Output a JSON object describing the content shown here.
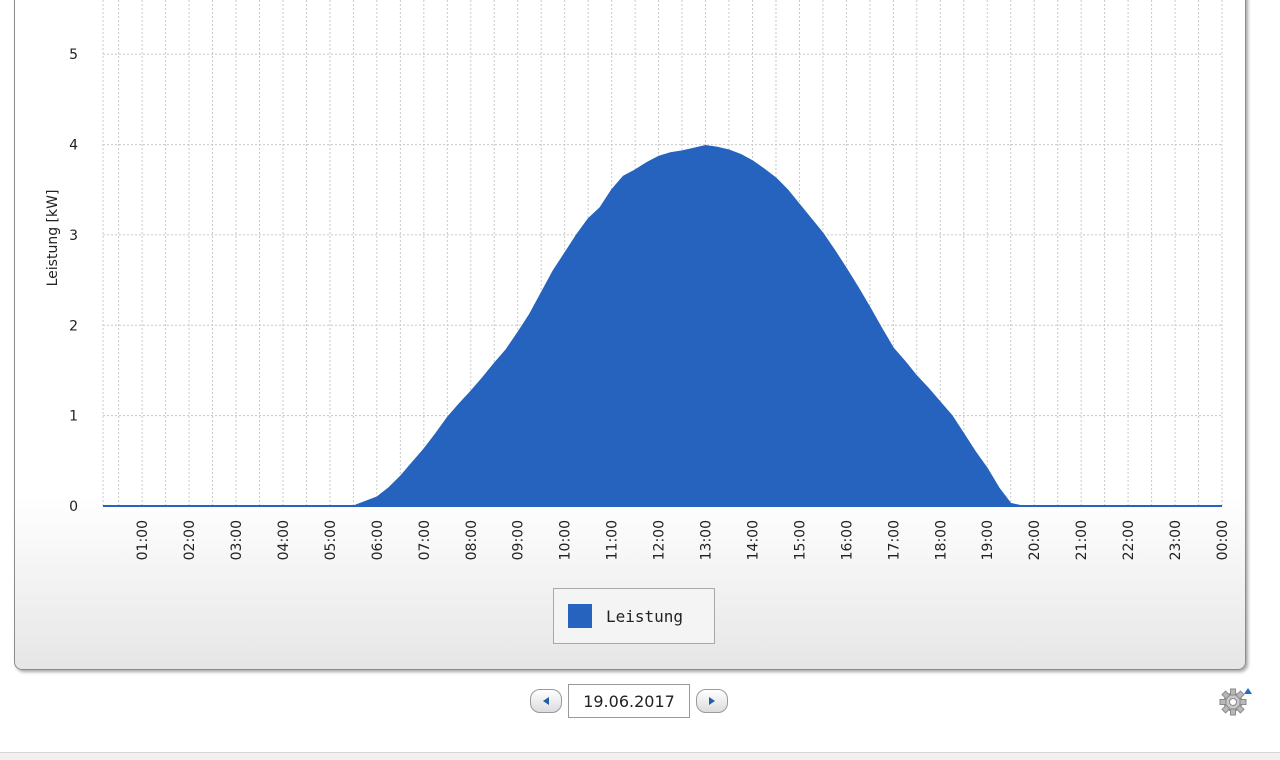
{
  "chart_data": {
    "type": "area",
    "ylabel": "Leistung [kW]",
    "ylim": [
      0,
      5.6
    ],
    "yticks": [
      "0",
      "1",
      "2",
      "3",
      "4",
      "5"
    ],
    "x_tick_labels": [
      "01:00",
      "02:00",
      "03:00",
      "04:00",
      "05:00",
      "06:00",
      "07:00",
      "08:00",
      "09:00",
      "10:00",
      "11:00",
      "12:00",
      "13:00",
      "14:00",
      "15:00",
      "16:00",
      "17:00",
      "18:00",
      "19:00",
      "20:00",
      "21:00",
      "22:00",
      "23:00",
      "00:00"
    ],
    "xlim": [
      "00:10",
      "24:00"
    ],
    "grid": true,
    "legend_position": "bottom-center",
    "series": [
      {
        "name": "Leistung",
        "color": "#2563be",
        "x": [
          "00:10",
          "05:30",
          "05:45",
          "06:00",
          "06:15",
          "06:30",
          "06:45",
          "07:00",
          "07:15",
          "07:30",
          "07:45",
          "08:00",
          "08:15",
          "08:30",
          "08:45",
          "09:00",
          "09:15",
          "09:30",
          "09:45",
          "10:00",
          "10:15",
          "10:30",
          "10:45",
          "11:00",
          "11:15",
          "11:30",
          "11:45",
          "12:00",
          "12:15",
          "12:30",
          "12:45",
          "13:00",
          "13:15",
          "13:30",
          "13:45",
          "14:00",
          "14:15",
          "14:30",
          "14:45",
          "15:00",
          "15:15",
          "15:30",
          "15:45",
          "16:00",
          "16:15",
          "16:30",
          "16:45",
          "17:00",
          "17:15",
          "17:30",
          "17:45",
          "18:00",
          "18:15",
          "18:30",
          "18:45",
          "19:00",
          "19:15",
          "19:30",
          "19:45",
          "20:00",
          "20:15",
          "20:30",
          "20:45",
          "21:00",
          "21:15",
          "21:30",
          "22:00",
          "23:00",
          "24:00"
        ],
        "values": [
          0,
          0,
          0.05,
          0.1,
          0.2,
          0.33,
          0.48,
          0.63,
          0.8,
          0.98,
          1.13,
          1.27,
          1.42,
          1.58,
          1.73,
          1.92,
          2.12,
          2.36,
          2.6,
          2.8,
          3.0,
          3.18,
          3.3,
          3.5,
          3.65,
          3.72,
          3.8,
          3.87,
          3.91,
          3.93,
          3.96,
          3.99,
          3.97,
          3.94,
          3.89,
          3.82,
          3.73,
          3.63,
          3.5,
          3.34,
          3.18,
          3.02,
          2.83,
          2.63,
          2.42,
          2.2,
          1.97,
          1.75,
          1.6,
          1.44,
          1.3,
          1.15,
          1.0,
          0.8,
          0.6,
          0.42,
          0.2,
          0.03,
          0,
          0,
          0,
          0,
          0,
          0,
          0,
          0,
          0,
          0,
          0
        ]
      }
    ]
  },
  "legend": {
    "label": "Leistung",
    "color": "#2563be"
  },
  "date_nav": {
    "date": "19.06.2017",
    "prev_icon": "triangle-left-icon",
    "next_icon": "triangle-right-icon"
  },
  "settings": {
    "icon": "gear-icon"
  }
}
